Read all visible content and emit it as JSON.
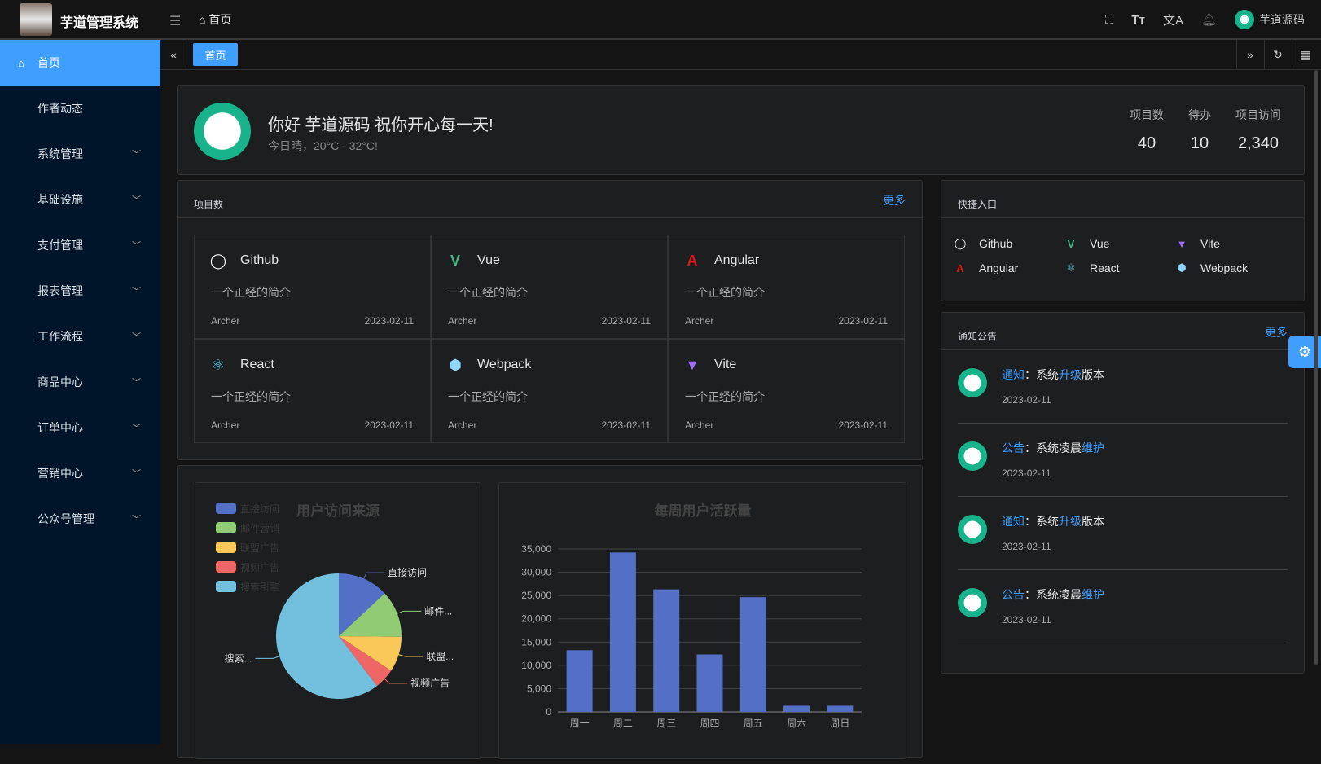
{
  "header": {
    "app_title": "芋道管理系统",
    "breadcrumb": "首页",
    "user": "芋道源码"
  },
  "sidebar": {
    "items": [
      {
        "label": "首页",
        "active": true,
        "icon": "home-icon"
      },
      {
        "label": "作者动态"
      },
      {
        "label": "系统管理",
        "expand": true
      },
      {
        "label": "基础设施",
        "expand": true
      },
      {
        "label": "支付管理",
        "expand": true
      },
      {
        "label": "报表管理",
        "expand": true
      },
      {
        "label": "工作流程",
        "expand": true
      },
      {
        "label": "商品中心",
        "expand": true
      },
      {
        "label": "订单中心",
        "expand": true
      },
      {
        "label": "营销中心",
        "expand": true
      },
      {
        "label": "公众号管理",
        "expand": true
      }
    ]
  },
  "tabs": {
    "items": [
      {
        "label": "首页"
      }
    ]
  },
  "welcome": {
    "greeting": "你好 芋道源码 祝你开心每一天!",
    "weather": "今日晴，20°C - 32°C!",
    "stats": [
      {
        "label": "项目数",
        "value": "40"
      },
      {
        "label": "待办",
        "value": "10"
      },
      {
        "label": "项目访问",
        "value": "2,340"
      }
    ]
  },
  "projects": {
    "title": "项目数",
    "more": "更多",
    "items": [
      {
        "name": "Github",
        "desc": "一个正经的简介",
        "author": "Archer",
        "date": "2023-02-11",
        "icon": "github-icon"
      },
      {
        "name": "Vue",
        "desc": "一个正经的简介",
        "author": "Archer",
        "date": "2023-02-11",
        "icon": "vue-icon"
      },
      {
        "name": "Angular",
        "desc": "一个正经的简介",
        "author": "Archer",
        "date": "2023-02-11",
        "icon": "angular-icon"
      },
      {
        "name": "React",
        "desc": "一个正经的简介",
        "author": "Archer",
        "date": "2023-02-11",
        "icon": "react-icon"
      },
      {
        "name": "Webpack",
        "desc": "一个正经的简介",
        "author": "Archer",
        "date": "2023-02-11",
        "icon": "webpack-icon"
      },
      {
        "name": "Vite",
        "desc": "一个正经的简介",
        "author": "Archer",
        "date": "2023-02-11",
        "icon": "vite-icon"
      }
    ]
  },
  "shortcuts": {
    "title": "快捷入口",
    "items": [
      {
        "name": "Github"
      },
      {
        "name": "Vue"
      },
      {
        "name": "Vite"
      },
      {
        "name": "Angular"
      },
      {
        "name": "React"
      },
      {
        "name": "Webpack"
      }
    ]
  },
  "notices": {
    "title": "通知公告",
    "more": "更多",
    "items": [
      {
        "type": "通知",
        "sep": "：",
        "a": "系统",
        "b": "升级",
        "c": "版本",
        "date": "2023-02-11"
      },
      {
        "type": "公告",
        "sep": "：",
        "a": "系统凌晨",
        "b": "维护",
        "c": "",
        "date": "2023-02-11"
      },
      {
        "type": "通知",
        "sep": "：",
        "a": "系统",
        "b": "升级",
        "c": "版本",
        "date": "2023-02-11"
      },
      {
        "type": "公告",
        "sep": "：",
        "a": "系统凌晨",
        "b": "维护",
        "c": "",
        "date": "2023-02-11"
      }
    ]
  },
  "colors": {
    "accent": "#409eff",
    "sidebar": "#001529"
  },
  "chart_data": [
    {
      "type": "pie",
      "title": "用户访问来源",
      "legend": "top-left",
      "categories": [
        "直接访问",
        "邮件营销",
        "联盟广告",
        "视频广告",
        "搜索引擎"
      ],
      "slice_labels": [
        "直接访问",
        "邮件...",
        "联盟...",
        "视频广告",
        "搜索..."
      ],
      "values": [
        335,
        310,
        234,
        135,
        1548
      ],
      "colors": [
        "#5470c6",
        "#91cc75",
        "#fac858",
        "#ee6666",
        "#73c0de"
      ]
    },
    {
      "type": "bar",
      "title": "每周用户活跃量",
      "categories": [
        "周一",
        "周二",
        "周三",
        "周四",
        "周五",
        "周六",
        "周日"
      ],
      "values": [
        13253,
        34235,
        26321,
        12340,
        24643,
        1322,
        1324
      ],
      "yticks": [
        "0",
        "5,000",
        "10,000",
        "15,000",
        "20,000",
        "25,000",
        "30,000",
        "35,000"
      ],
      "ylim": [
        0,
        35000
      ],
      "grid": true,
      "color": "#5470c6"
    }
  ]
}
